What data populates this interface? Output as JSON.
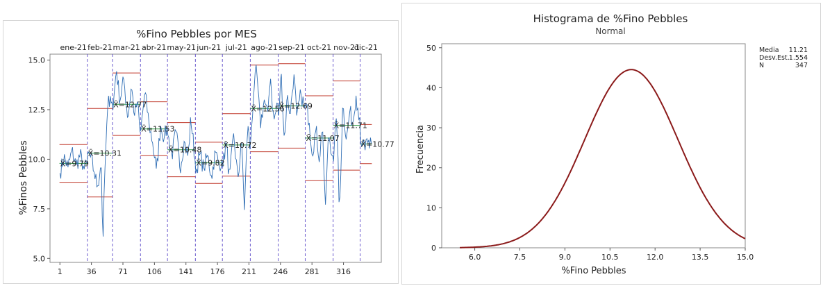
{
  "chart_data": [
    {
      "type": "line",
      "title": "%Fino Pebbles por MES",
      "xlabel": "",
      "ylabel": "%Finos Pebbles",
      "xlim": [
        -10,
        358
      ],
      "ylim": [
        4.8,
        15.3
      ],
      "xticks": [
        1,
        36,
        71,
        106,
        141,
        176,
        211,
        246,
        281,
        316
      ],
      "yticks": [
        "5.0",
        "7.5",
        "10.0",
        "12.5",
        "15.0"
      ],
      "line_color": "#2e6db4",
      "center_color": "#2e9a45",
      "limit_color": "#c0392b",
      "divider_color": "#6a5acd",
      "stages": [
        {
          "label": "ene-21",
          "start": 1,
          "end": 31,
          "mean": 9.79,
          "mean_label": "X̄=9.79",
          "ucl": 10.74,
          "lcl": 8.84
        },
        {
          "label": "feb-21",
          "start": 32,
          "end": 59,
          "mean": 10.31,
          "mean_label": "X̄=10.31",
          "ucl": 12.56,
          "lcl": 8.1
        },
        {
          "label": "mar-21",
          "start": 60,
          "end": 90,
          "mean": 12.77,
          "mean_label": "X̄=12.77",
          "ucl": 14.35,
          "lcl": 11.2
        },
        {
          "label": "abr-21",
          "start": 91,
          "end": 120,
          "mean": 11.53,
          "mean_label": "X̄=11.53",
          "ucl": 12.9,
          "lcl": 10.18
        },
        {
          "label": "may-21",
          "start": 121,
          "end": 151,
          "mean": 10.48,
          "mean_label": "X̄=10.48",
          "ucl": 11.85,
          "lcl": 9.12
        },
        {
          "label": "jun-21",
          "start": 152,
          "end": 181,
          "mean": 9.82,
          "mean_label": "X̄=9.82",
          "ucl": 10.86,
          "lcl": 8.78
        },
        {
          "label": "jul-21",
          "start": 182,
          "end": 212,
          "mean": 10.72,
          "mean_label": "X̄=10.72",
          "ucl": 12.3,
          "lcl": 9.15
        },
        {
          "label": "ago-21",
          "start": 213,
          "end": 243,
          "mean": 12.56,
          "mean_label": "X̄=12.56",
          "ucl": 14.75,
          "lcl": 10.38
        },
        {
          "label": "sep-21",
          "start": 244,
          "end": 273,
          "mean": 12.69,
          "mean_label": "X̄=12.69",
          "ucl": 14.82,
          "lcl": 10.56
        },
        {
          "label": "oct-21",
          "start": 274,
          "end": 304,
          "mean": 11.07,
          "mean_label": "X̄=11.07",
          "ucl": 13.2,
          "lcl": 8.92
        },
        {
          "label": "nov-21",
          "start": 305,
          "end": 334,
          "mean": 11.71,
          "mean_label": "X̄=11.71",
          "ucl": 13.95,
          "lcl": 9.45
        },
        {
          "label": "dic-21",
          "start": 335,
          "end": 347,
          "mean": 10.77,
          "mean_label": "X̄=10.77",
          "ucl": 11.75,
          "lcl": 9.78
        }
      ],
      "series_shape": [
        {
          "stage": 0,
          "points": [
            [
              0,
              9.3
            ],
            [
              0.15,
              10.1
            ],
            [
              0.3,
              9.6
            ],
            [
              0.45,
              10.4
            ],
            [
              0.6,
              9.7
            ],
            [
              0.75,
              10.2
            ],
            [
              0.9,
              9.5
            ],
            [
              1,
              9.8
            ]
          ]
        },
        {
          "stage": 1,
          "points": [
            [
              0,
              10.3
            ],
            [
              0.12,
              10.1
            ],
            [
              0.25,
              9.4
            ],
            [
              0.4,
              8.6
            ],
            [
              0.55,
              9.9
            ],
            [
              0.62,
              5.65
            ],
            [
              0.7,
              9.4
            ],
            [
              0.82,
              12.7
            ],
            [
              0.92,
              13.2
            ],
            [
              1,
              12.9
            ]
          ]
        },
        {
          "stage": 2,
          "points": [
            [
              0,
              12.5
            ],
            [
              0.12,
              14.6
            ],
            [
              0.25,
              13.0
            ],
            [
              0.4,
              14.0
            ],
            [
              0.55,
              12.1
            ],
            [
              0.68,
              13.7
            ],
            [
              0.8,
              12.2
            ],
            [
              0.9,
              12.9
            ],
            [
              1,
              11.4
            ]
          ]
        },
        {
          "stage": 3,
          "points": [
            [
              0,
              11.5
            ],
            [
              0.15,
              13.4
            ],
            [
              0.3,
              11.9
            ],
            [
              0.45,
              10.8
            ],
            [
              0.6,
              9.4
            ],
            [
              0.75,
              11.7
            ],
            [
              0.9,
              11.1
            ],
            [
              1,
              11.6
            ]
          ]
        },
        {
          "stage": 4,
          "points": [
            [
              0,
              11.2
            ],
            [
              0.15,
              10.2
            ],
            [
              0.3,
              11.4
            ],
            [
              0.45,
              9.6
            ],
            [
              0.6,
              10.9
            ],
            [
              0.75,
              10.1
            ],
            [
              0.85,
              12.1
            ],
            [
              1,
              10.0
            ]
          ]
        },
        {
          "stage": 5,
          "points": [
            [
              0,
              9.3
            ],
            [
              0.15,
              10.3
            ],
            [
              0.3,
              9.5
            ],
            [
              0.45,
              10.2
            ],
            [
              0.6,
              9.1
            ],
            [
              0.75,
              10.4
            ],
            [
              0.88,
              9.7
            ],
            [
              1,
              10.0
            ]
          ]
        },
        {
          "stage": 6,
          "points": [
            [
              0,
              9.6
            ],
            [
              0.12,
              10.9
            ],
            [
              0.25,
              8.9
            ],
            [
              0.4,
              11.3
            ],
            [
              0.55,
              9.0
            ],
            [
              0.7,
              10.8
            ],
            [
              0.8,
              7.45
            ],
            [
              0.92,
              11.9
            ],
            [
              1,
              10.5
            ]
          ]
        },
        {
          "stage": 7,
          "points": [
            [
              0,
              11.0
            ],
            [
              0.12,
              13.6
            ],
            [
              0.22,
              14.5
            ],
            [
              0.35,
              11.7
            ],
            [
              0.5,
              13.0
            ],
            [
              0.62,
              12.1
            ],
            [
              0.72,
              14.3
            ],
            [
              0.85,
              11.9
            ],
            [
              1,
              12.8
            ]
          ]
        },
        {
          "stage": 8,
          "points": [
            [
              0,
              12.2
            ],
            [
              0.1,
              14.4
            ],
            [
              0.22,
              10.8
            ],
            [
              0.32,
              13.2
            ],
            [
              0.45,
              12.3
            ],
            [
              0.58,
              14.4
            ],
            [
              0.7,
              12.0
            ],
            [
              0.85,
              13.3
            ],
            [
              1,
              12.6
            ]
          ]
        },
        {
          "stage": 9,
          "points": [
            [
              0,
              12.8
            ],
            [
              0.12,
              12.0
            ],
            [
              0.25,
              10.4
            ],
            [
              0.38,
              11.5
            ],
            [
              0.52,
              9.9
            ],
            [
              0.62,
              12.0
            ],
            [
              0.72,
              7.3
            ],
            [
              0.85,
              11.3
            ],
            [
              1,
              10.2
            ]
          ]
        },
        {
          "stage": 10,
          "points": [
            [
              0,
              9.9
            ],
            [
              0.12,
              12.4
            ],
            [
              0.22,
              7.15
            ],
            [
              0.35,
              12.8
            ],
            [
              0.5,
              11.0
            ],
            [
              0.62,
              12.4
            ],
            [
              0.75,
              11.8
            ],
            [
              0.85,
              13.3
            ],
            [
              1,
              12.1
            ]
          ]
        },
        {
          "stage": 11,
          "points": [
            [
              0,
              11.0
            ],
            [
              0.2,
              10.7
            ],
            [
              0.4,
              10.4
            ],
            [
              0.6,
              11.1
            ],
            [
              0.8,
              10.5
            ],
            [
              1,
              10.8
            ]
          ]
        }
      ]
    },
    {
      "type": "line",
      "title": "Histograma de %Fino Pebbles",
      "subtitle": "Normal",
      "xlabel": "%Fino Pebbles",
      "ylabel": "Frecuencia",
      "xlim": [
        4.9,
        15.0
      ],
      "ylim": [
        0,
        51
      ],
      "xticks": [
        "6.0",
        "7.5",
        "9.0",
        "10.5",
        "12.0",
        "13.5",
        "15.0"
      ],
      "yticks": [
        "0",
        "10",
        "20",
        "30",
        "40",
        "50"
      ],
      "curve": {
        "mean": 11.21,
        "stdev": 1.554,
        "n": 347,
        "bin_width": 0.5,
        "x_start": 5.5,
        "x_end": 15.0
      },
      "curve_color": "#8b1a1a",
      "stats": [
        {
          "label": "Media",
          "value": "11.21"
        },
        {
          "label": "Desv.Est.",
          "value": "1.554"
        },
        {
          "label": "N",
          "value": "347"
        }
      ]
    }
  ]
}
